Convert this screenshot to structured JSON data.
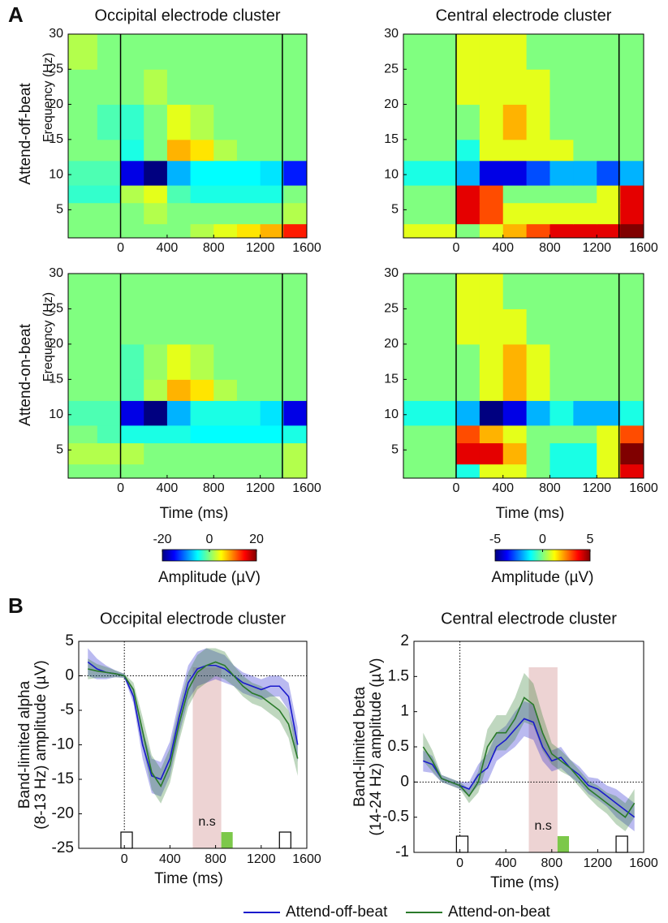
{
  "panel_labels": [
    "A",
    "B"
  ],
  "row_labels": [
    "Attend-off-beat",
    "Attend-on-beat"
  ],
  "chart_data": [
    {
      "type": "heatmap",
      "title": "Occipital electrode cluster",
      "ylabel": "Frequency (Hz)",
      "xlim": [
        -450,
        1600
      ],
      "ylim": [
        1,
        30
      ],
      "xticks": [
        0,
        400,
        800,
        1200,
        1600
      ],
      "yticks": [
        5,
        10,
        15,
        20,
        25,
        30
      ],
      "x_bins": [
        -450,
        -200,
        0,
        200,
        400,
        600,
        800,
        1000,
        1200,
        1400,
        1600
      ],
      "y_bins": [
        1,
        3,
        6,
        8.5,
        12,
        15,
        20,
        25,
        30
      ],
      "colormap": "jet",
      "clim": [
        -20,
        20
      ],
      "vlines": [
        0,
        1390
      ],
      "z": [
        [
          0,
          0,
          0,
          0,
          0,
          2,
          4,
          6,
          8,
          14
        ],
        [
          0,
          0,
          0,
          2,
          0,
          0,
          0,
          0,
          0,
          2
        ],
        [
          -3,
          -3,
          2,
          4,
          -2,
          -4,
          -4,
          -4,
          -4,
          0
        ],
        [
          -2,
          -2,
          -16,
          -20,
          -8,
          -5,
          -5,
          -5,
          -6,
          -14
        ],
        [
          0,
          0,
          -4,
          0,
          8,
          6,
          2,
          0,
          0,
          0
        ],
        [
          0,
          -2,
          -3,
          0,
          4,
          2,
          0,
          0,
          0,
          0
        ],
        [
          0,
          0,
          0,
          2,
          0,
          0,
          0,
          0,
          0,
          0
        ],
        [
          2,
          0,
          0,
          0,
          0,
          0,
          0,
          0,
          0,
          0
        ]
      ]
    },
    {
      "type": "heatmap",
      "title": "Central electrode cluster",
      "xlim": [
        -450,
        1600
      ],
      "ylim": [
        1,
        30
      ],
      "xticks": [
        0,
        400,
        800,
        1200,
        1600
      ],
      "yticks": [
        5,
        10,
        15,
        20,
        25,
        30
      ],
      "x_bins": [
        -450,
        -200,
        0,
        200,
        400,
        600,
        800,
        1000,
        1200,
        1400,
        1600
      ],
      "y_bins": [
        1,
        3,
        6,
        8.5,
        12,
        15,
        20,
        25,
        30
      ],
      "colormap": "jet",
      "clim": [
        -5,
        5
      ],
      "vlines": [
        0,
        1390
      ],
      "z": [
        [
          1,
          1,
          0,
          1,
          2,
          3,
          4,
          4,
          4,
          5
        ],
        [
          0,
          0,
          4,
          3,
          1,
          1,
          1,
          1,
          1,
          4
        ],
        [
          0,
          0,
          4,
          3,
          0,
          0,
          0,
          0,
          1,
          4
        ],
        [
          -1,
          -1,
          -2,
          -4,
          -4,
          -3,
          -2,
          -2,
          -3,
          -2
        ],
        [
          0,
          0,
          -1,
          1,
          1,
          1,
          1,
          0,
          0,
          0
        ],
        [
          0,
          0,
          0,
          1,
          2,
          1,
          0,
          0,
          0,
          0
        ],
        [
          0,
          0,
          1,
          1,
          1,
          1,
          0,
          0,
          0,
          0
        ],
        [
          0,
          0,
          1,
          1,
          1,
          0,
          0,
          0,
          0,
          0
        ]
      ]
    },
    {
      "type": "heatmap",
      "ylabel": "Frequency (Hz)",
      "xlabel": "Time (ms)",
      "xlim": [
        -450,
        1600
      ],
      "ylim": [
        1,
        30
      ],
      "xticks": [
        0,
        400,
        800,
        1200,
        1600
      ],
      "yticks": [
        5,
        10,
        15,
        20,
        25,
        30
      ],
      "x_bins": [
        -450,
        -200,
        0,
        200,
        400,
        600,
        800,
        1000,
        1200,
        1400,
        1600
      ],
      "y_bins": [
        1,
        3,
        6,
        8.5,
        12,
        15,
        20,
        25,
        30
      ],
      "colormap": "jet",
      "clim": [
        -20,
        20
      ],
      "vlines": [
        0,
        1390
      ],
      "colorbar": {
        "ticks": [
          -20,
          0,
          20
        ],
        "label": "Amplitude (µV)"
      },
      "z": [
        [
          0,
          0,
          0,
          0,
          0,
          0,
          0,
          0,
          0,
          2
        ],
        [
          2,
          2,
          2,
          0,
          0,
          0,
          0,
          0,
          0,
          2
        ],
        [
          0,
          -2,
          -4,
          -4,
          -4,
          -5,
          -5,
          -5,
          -5,
          -4
        ],
        [
          -2,
          -2,
          -16,
          -20,
          -8,
          -4,
          -4,
          -4,
          -6,
          -16
        ],
        [
          0,
          0,
          -2,
          2,
          8,
          6,
          2,
          0,
          0,
          0
        ],
        [
          0,
          0,
          -2,
          1,
          4,
          2,
          0,
          0,
          0,
          0
        ],
        [
          0,
          0,
          0,
          0,
          0,
          0,
          0,
          0,
          0,
          0
        ],
        [
          0,
          0,
          0,
          0,
          0,
          0,
          0,
          0,
          0,
          0
        ]
      ]
    },
    {
      "type": "heatmap",
      "xlabel": "Time (ms)",
      "xlim": [
        -450,
        1600
      ],
      "ylim": [
        1,
        30
      ],
      "xticks": [
        0,
        400,
        800,
        1200,
        1600
      ],
      "yticks": [
        5,
        10,
        15,
        20,
        25,
        30
      ],
      "x_bins": [
        -450,
        -200,
        0,
        200,
        400,
        600,
        800,
        1000,
        1200,
        1400,
        1600
      ],
      "y_bins": [
        1,
        3,
        6,
        8.5,
        12,
        15,
        20,
        25,
        30
      ],
      "colormap": "jet",
      "clim": [
        -5,
        5
      ],
      "vlines": [
        0,
        1390
      ],
      "colorbar": {
        "ticks": [
          -5,
          0,
          5
        ],
        "label": "Amplitude (µV)"
      },
      "z": [
        [
          0,
          0,
          -1,
          1,
          1,
          0,
          -1,
          -1,
          1,
          4
        ],
        [
          0,
          0,
          4,
          4,
          2,
          0,
          -1,
          -1,
          1,
          5
        ],
        [
          0,
          0,
          3,
          2,
          1,
          0,
          0,
          0,
          1,
          3
        ],
        [
          -1,
          -1,
          -2,
          -5,
          -4,
          -2,
          -1,
          -2,
          -2,
          -1
        ],
        [
          0,
          0,
          0,
          1,
          2,
          1,
          0,
          0,
          0,
          0
        ],
        [
          0,
          0,
          0,
          1,
          2,
          1,
          0,
          0,
          0,
          0
        ],
        [
          0,
          0,
          1,
          1,
          1,
          0,
          0,
          0,
          0,
          0
        ],
        [
          0,
          0,
          1,
          1,
          0,
          0,
          0,
          0,
          0,
          0
        ]
      ]
    },
    {
      "type": "line",
      "title": "Occipital electrode cluster",
      "xlabel": "Time (ms)",
      "ylabel": [
        "Band-limited alpha",
        "(8-13 Hz) amplitude (µV)"
      ],
      "xlim": [
        -400,
        1600
      ],
      "ylim": [
        -25,
        5
      ],
      "xticks": [
        0,
        400,
        800,
        1200,
        1600
      ],
      "yticks": [
        -25,
        -20,
        -15,
        -10,
        -5,
        0,
        5
      ],
      "ref_lines": {
        "x": 0,
        "y": 0
      },
      "shaded_span": [
        600,
        850
      ],
      "significance_span": [
        850,
        950
      ],
      "significance_label": "n.s",
      "stimulus_boxes": [
        [
          -30,
          70
        ],
        [
          1360,
          1460
        ]
      ],
      "x": [
        -320,
        -240,
        -160,
        -80,
        0,
        80,
        160,
        240,
        320,
        400,
        480,
        560,
        640,
        720,
        800,
        880,
        960,
        1040,
        1120,
        1200,
        1280,
        1360,
        1440,
        1520
      ],
      "series": [
        {
          "name": "Attend-off-beat",
          "color": "#1a1acc",
          "values": [
            2,
            1,
            0.5,
            0.3,
            0,
            -3,
            -10,
            -14.5,
            -15,
            -12,
            -6,
            -1,
            1,
            1.5,
            1.5,
            1,
            0,
            -1,
            -1.5,
            -2,
            -1.5,
            -1.5,
            -3,
            -10
          ],
          "error": [
            2,
            1.5,
            1,
            0.5,
            0.3,
            1,
            2,
            2.5,
            2.5,
            2.5,
            2.5,
            2.5,
            2.5,
            2.5,
            2,
            2,
            1.5,
            1.5,
            1.5,
            1.5,
            1.5,
            1.5,
            2,
            2.5
          ]
        },
        {
          "name": "Attend-on-beat",
          "color": "#2a7a2a",
          "values": [
            1,
            0.7,
            0.5,
            0.3,
            0,
            -2,
            -8,
            -14,
            -16,
            -13,
            -7,
            -2,
            0.5,
            1.5,
            2,
            1.5,
            0,
            -1.5,
            -2.5,
            -3,
            -4,
            -5,
            -7,
            -12
          ],
          "error": [
            1.5,
            1,
            0.8,
            0.5,
            0.3,
            1,
            2,
            2.5,
            2.5,
            2.5,
            2.5,
            2.5,
            2.5,
            2.5,
            2,
            2,
            1.5,
            1.5,
            1.5,
            1.5,
            1.5,
            1.5,
            2,
            2.5
          ]
        }
      ]
    },
    {
      "type": "line",
      "title": "Central electrode cluster",
      "xlabel": "Time (ms)",
      "ylabel": [
        "Band-limited beta",
        "(14-24 Hz) amplitude (µV)"
      ],
      "xlim": [
        -400,
        1600
      ],
      "ylim": [
        -1,
        2
      ],
      "xticks": [
        0,
        400,
        800,
        1200,
        1600
      ],
      "yticks": [
        -1,
        -0.5,
        0,
        0.5,
        1,
        1.5,
        2
      ],
      "ref_lines": {
        "x": 0,
        "y": 0
      },
      "shaded_span": [
        600,
        850
      ],
      "significance_span": [
        850,
        950
      ],
      "significance_label": "n.s",
      "stimulus_boxes": [
        [
          -30,
          70
        ],
        [
          1360,
          1460
        ]
      ],
      "x": [
        -320,
        -240,
        -160,
        -80,
        0,
        80,
        160,
        240,
        320,
        400,
        480,
        560,
        640,
        720,
        800,
        880,
        960,
        1040,
        1120,
        1200,
        1280,
        1360,
        1440,
        1520
      ],
      "series": [
        {
          "color": "#1a1acc",
          "values": [
            0.3,
            0.25,
            0.05,
            0,
            -0.05,
            -0.1,
            0.1,
            0.2,
            0.5,
            0.6,
            0.75,
            0.9,
            0.85,
            0.5,
            0.3,
            0.35,
            0.2,
            0.1,
            -0.05,
            -0.1,
            -0.2,
            -0.3,
            -0.4,
            -0.5
          ],
          "error": [
            0.15,
            0.12,
            0.05,
            0.05,
            0.05,
            0.1,
            0.15,
            0.2,
            0.2,
            0.2,
            0.25,
            0.25,
            0.25,
            0.2,
            0.15,
            0.15,
            0.12,
            0.12,
            0.12,
            0.15,
            0.15,
            0.2,
            0.2,
            0.2
          ]
        },
        {
          "color": "#2a7a2a",
          "values": [
            0.5,
            0.3,
            0.05,
            0,
            -0.05,
            -0.2,
            0,
            0.5,
            0.7,
            0.7,
            0.9,
            1.2,
            1.1,
            0.7,
            0.4,
            0.3,
            0.2,
            0.05,
            -0.1,
            -0.2,
            -0.3,
            -0.4,
            -0.5,
            -0.3
          ],
          "error": [
            0.2,
            0.15,
            0.05,
            0.05,
            0.05,
            0.1,
            0.15,
            0.25,
            0.25,
            0.25,
            0.3,
            0.35,
            0.3,
            0.25,
            0.15,
            0.15,
            0.12,
            0.12,
            0.12,
            0.15,
            0.15,
            0.2,
            0.2,
            0.2
          ]
        }
      ]
    }
  ]
}
